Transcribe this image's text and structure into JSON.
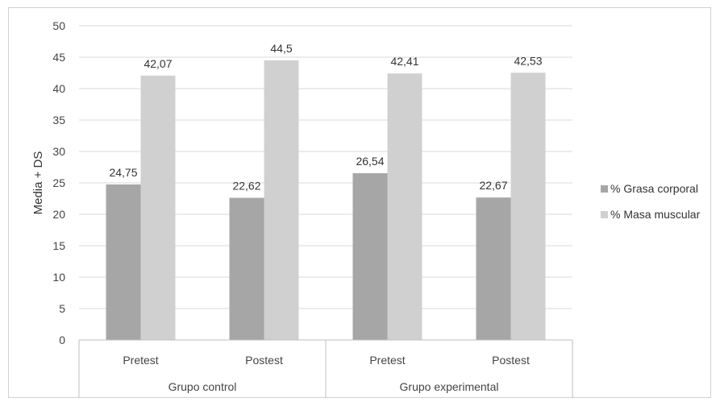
{
  "chart_data": {
    "type": "bar",
    "title": "",
    "xlabel": "",
    "ylabel": "Media + DS",
    "ylim": [
      0,
      50
    ],
    "yticks": [
      0,
      5,
      10,
      15,
      20,
      25,
      30,
      35,
      40,
      45,
      50
    ],
    "grid": true,
    "legend_position": "right",
    "groups": [
      {
        "label": "Grupo control",
        "categories": [
          "Pretest",
          "Postest"
        ]
      },
      {
        "label": "Grupo experimental",
        "categories": [
          "Pretest",
          "Postest"
        ]
      }
    ],
    "categories": [
      "Pretest",
      "Postest",
      "Pretest",
      "Postest"
    ],
    "series": [
      {
        "name": "% Grasa corporal",
        "color": "#a6a6a6",
        "values": [
          24.75,
          22.62,
          26.54,
          22.67
        ],
        "labels": [
          "24,75",
          "22,62",
          "26,54",
          "22,67"
        ]
      },
      {
        "name": "% Masa muscular",
        "color": "#d0d0d0",
        "values": [
          42.07,
          44.5,
          42.41,
          42.53
        ],
        "labels": [
          "42,07",
          "44,5",
          "42,41",
          "42,53"
        ]
      }
    ]
  }
}
